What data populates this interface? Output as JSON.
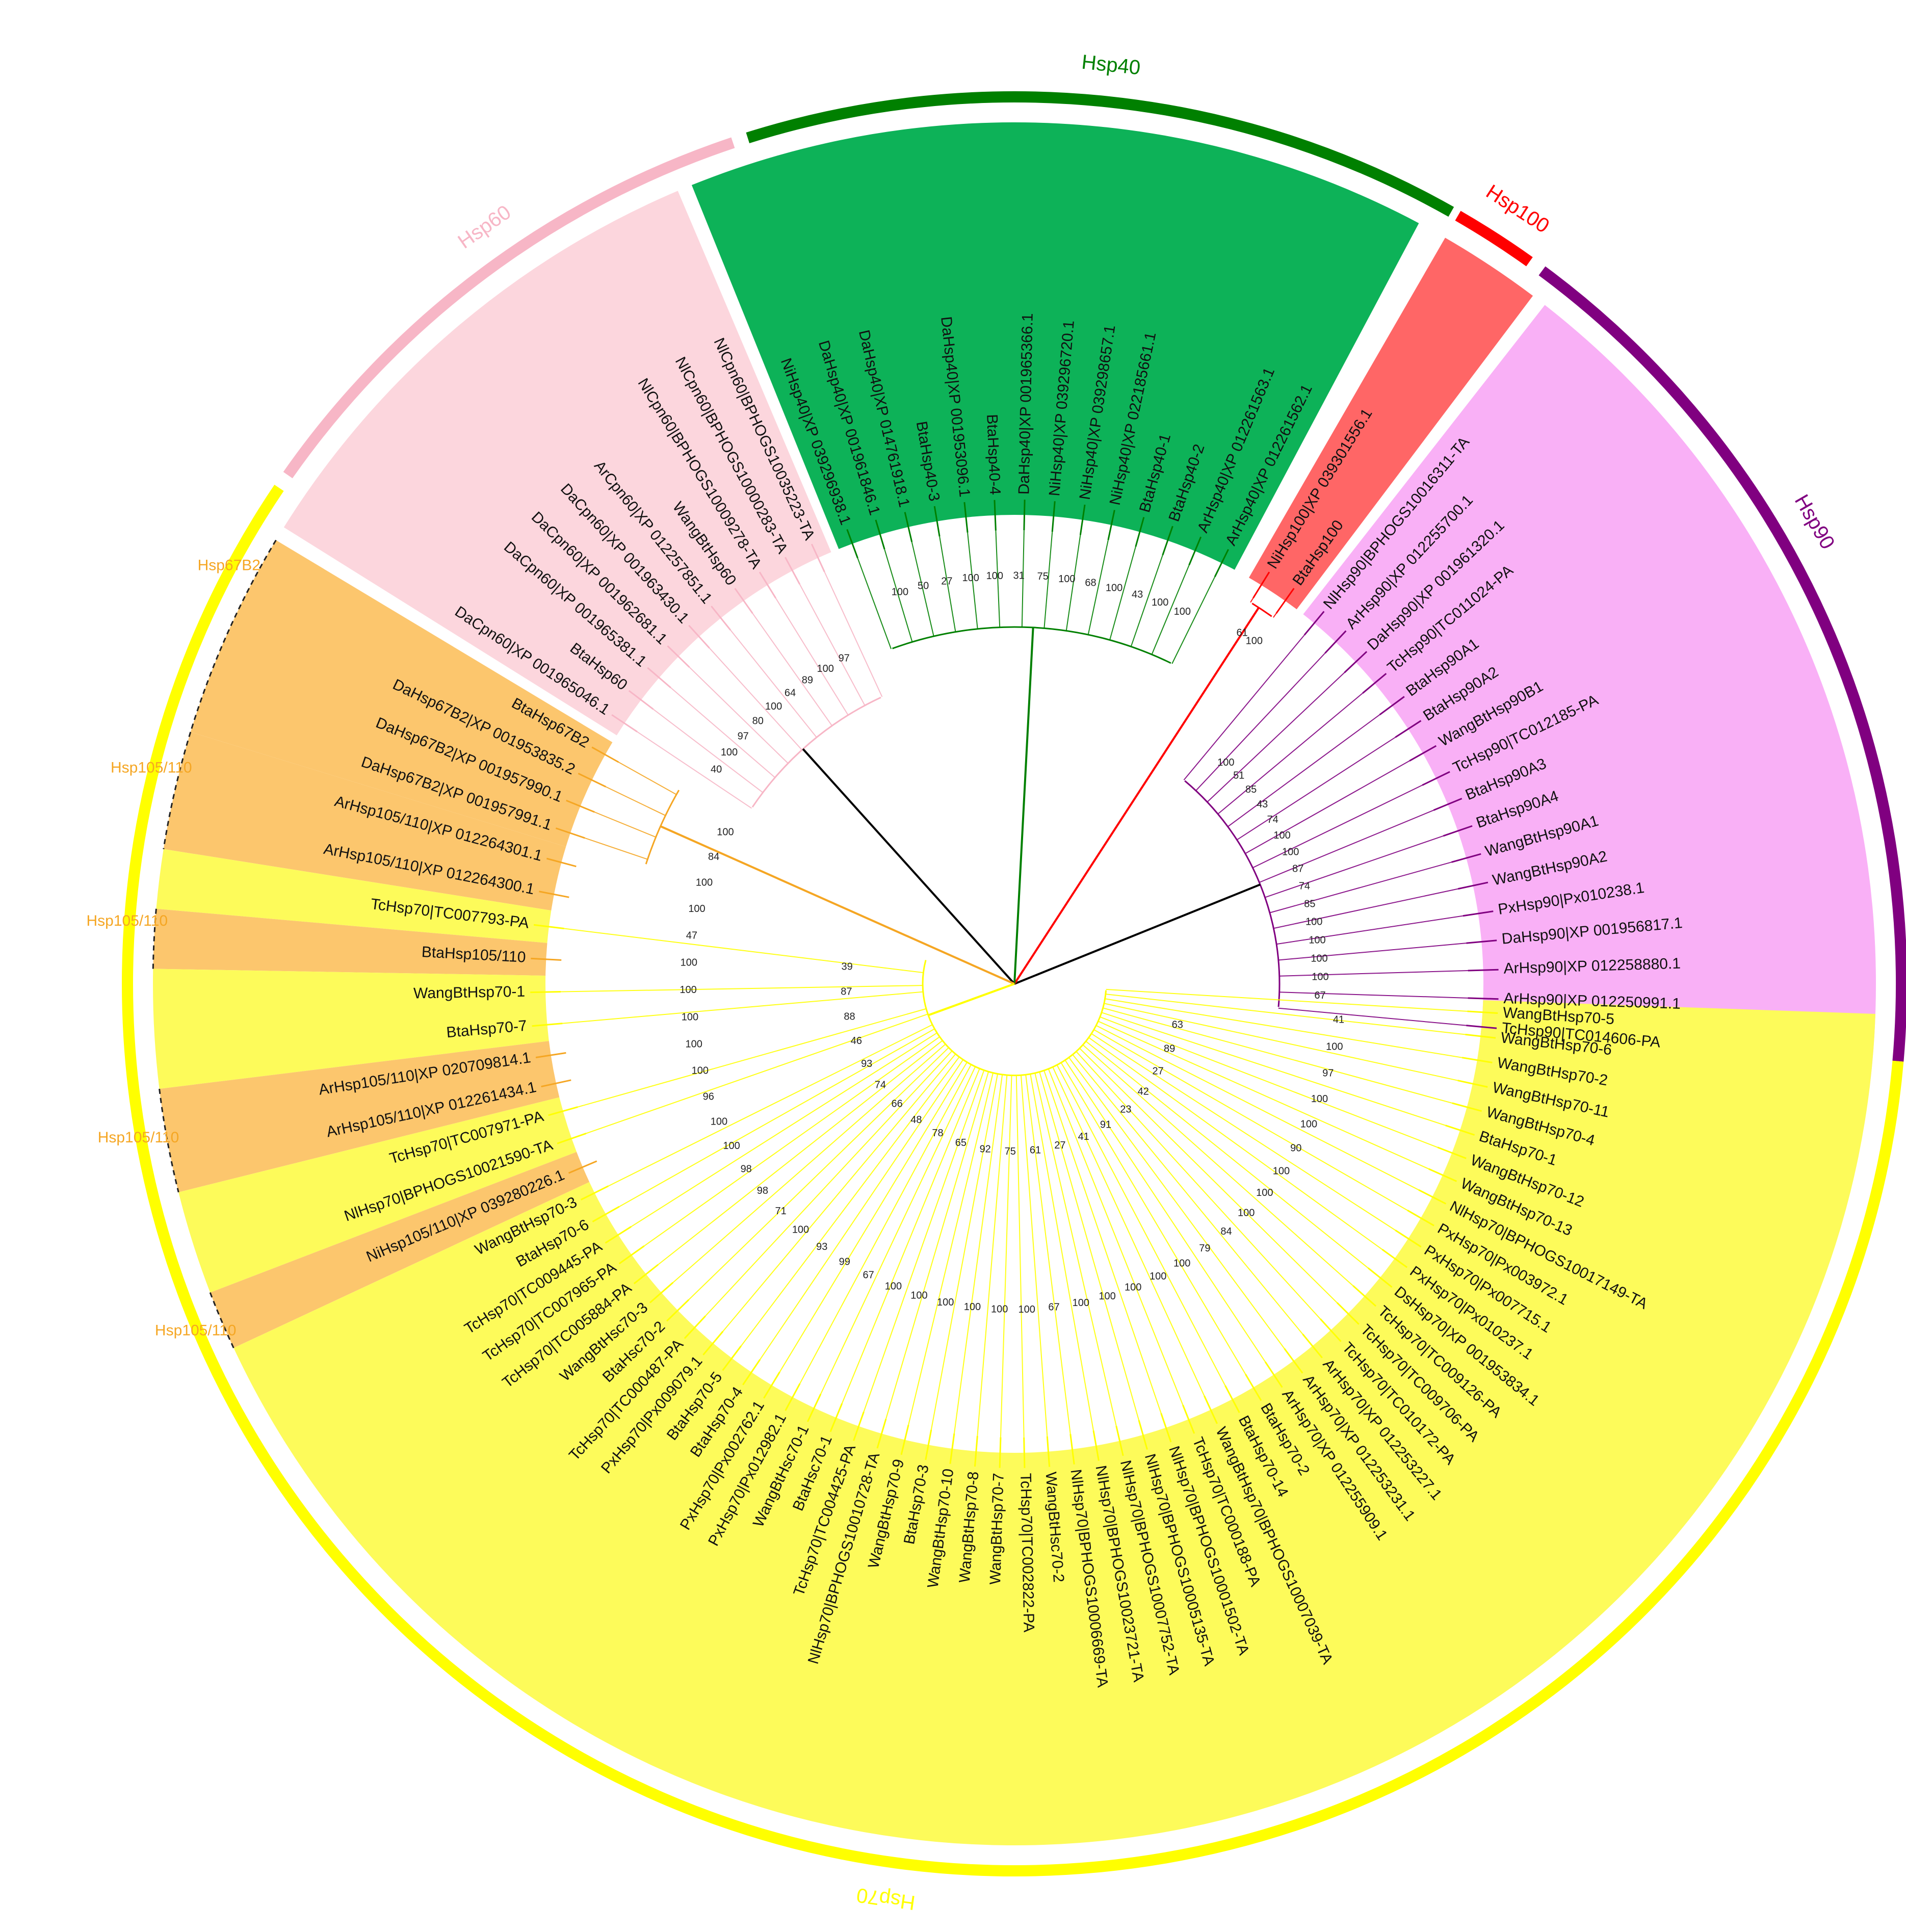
{
  "colors": {
    "Hsp40": "#008000",
    "Hsp40_fill": "#0db258",
    "Hsp100": "#ff0000",
    "Hsp100_fill": "#ff6666",
    "Hsp90": "#800080",
    "Hsp90_fill": "#f9b0f6",
    "Hsp60": "#f7b6c6",
    "Hsp60_fill": "#fcd6dd",
    "Hsp70": "#ffff00",
    "Hsp70_fill": "#fdfb5a",
    "Hsp105": "#f5a623",
    "Hsp105_fill": "#fcc66d",
    "root": "#000000"
  },
  "family_labels": [
    {
      "key": "Hsp40",
      "text": "Hsp40"
    },
    {
      "key": "Hsp100",
      "text": "Hsp100"
    },
    {
      "key": "Hsp90",
      "text": "Hsp90"
    },
    {
      "key": "Hsp60",
      "text": "Hsp60"
    },
    {
      "key": "Hsp70",
      "text": "Hsp70"
    }
  ],
  "subfamily_labels": [
    {
      "key": "Hsp67B2",
      "text": "Hsp67B2"
    },
    {
      "key": "Hsp105_a",
      "text": "Hsp105/110"
    },
    {
      "key": "Hsp105_b",
      "text": "Hsp105/110"
    },
    {
      "key": "Hsp105_c",
      "text": "Hsp105/110"
    },
    {
      "key": "Hsp105_d",
      "text": "Hsp105/110"
    }
  ],
  "leaves": {
    "Hsp90": [
      "TcHsp90|TC014606-PA",
      "ArHsp90|XP 012250991.1",
      "ArHsp90|XP 012258880.1",
      "DaHsp90|XP 001956817.1",
      "PxHsp90|Px010238.1",
      "WangBtHsp90A2",
      "WangBtHsp90A1",
      "BtaHsp90A4",
      "BtaHsp90A3",
      "TcHsp90|TC012185-PA",
      "WangBtHsp90B1",
      "BtaHsp90A2",
      "BtaHsp90A1",
      "TcHsp90|TC011024-PA",
      "DaHsp90|XP 001961320.1",
      "ArHsp90|XP 012255700.1",
      "NlHsp90|BPHOGS10016311-TA"
    ],
    "Hsp100": [
      "BtaHsp100",
      "NiHsp100|XP 039301556.1"
    ],
    "Hsp40": [
      "ArHsp40|XP 012261562.1",
      "ArHsp40|XP 012261563.1",
      "BtaHsp40-2",
      "BtaHsp40-1",
      "NiHsp40|XP 022185661.1",
      "NiHsp40|XP 039298657.1",
      "NiHsp40|XP 039296720.1",
      "DaHsp40|XP 001965366.1",
      "BtaHsp40-4",
      "DaHsp40|XP 001953096.1",
      "BtaHsp40-3",
      "DaHsp40|XP 014761918.1",
      "DaHsp40|XP 001961846.1",
      "NiHsp40|XP 039296938.1"
    ],
    "Hsp60": [
      "NlCpn60|BPHOGS10035223-TA",
      "NlCpn60|BPHOGS10000283-TA",
      "NlCpn60|BPHOGS10009278-TA",
      "WangBtHsp60",
      "ArCpn60|XP 012257851.1",
      "DaCpn60|XP 001963430.1",
      "DaCpn60|XP 001962681.1",
      "DaCpn60|XP 001965381.1",
      "BtaHsp60",
      "DaCpn60|XP 001965046.1"
    ],
    "Hsp67B2": [
      "BtaHsp67B2",
      "DaHsp67B2|XP 001953835.2",
      "DaHsp67B2|XP 001957990.1",
      "DaHsp67B2|XP 001957991.1"
    ],
    "Hsp105_a": [
      "ArHsp105/110|XP 012264301.1",
      "ArHsp105/110|XP 012264300.1"
    ],
    "Hsp70_a": [
      "TcHsp70|TC007793-PA"
    ],
    "Hsp105_b": [
      "BtaHsp105/110"
    ],
    "Hsp70_b": [
      "WangBtHsp70-1",
      "BtaHsp70-7"
    ],
    "Hsp105_c": [
      "ArHsp105/110|XP 020709814.1",
      "ArHsp105/110|XP 012261434.1"
    ],
    "Hsp70_c": [
      "TcHsp70|TC007971-PA",
      "NlHsp70|BPHOGS10021590-TA"
    ],
    "Hsp105_d": [
      "NiHsp105/110|XP 039280226.1"
    ],
    "Hsp70_d": [
      "WangBtHsp70-3",
      "BtaHsp70-6",
      "TcHsp70|TC009445-PA",
      "TcHsp70|TC007965-PA",
      "TcHsp70|TC005884-PA",
      "WangBtHsc70-3",
      "BtaHsc70-2",
      "TcHsp70|TC000487-PA",
      "PxHsp70|Px009079.1",
      "BtaHsp70-5",
      "BtaHsp70-4",
      "PxHsp70|Px002762.1",
      "PxHsp70|Px012982.1",
      "WangBtHsc70-1",
      "BtaHsc70-1",
      "TcHsp70|TC004425-PA",
      "NlHsp70|BPHOGS10010728-TA",
      "WangBtHsp70-9",
      "BtaHsp70-3",
      "WangBtHsp70-10",
      "WangBtHsp70-8",
      "WangBtHsp70-7",
      "TcHsp70|TC002822-PA",
      "WangBtHsc70-2",
      "NlHsp70|BPHOGS10006669-TA",
      "NlHsp70|BPHOGS10023721-TA",
      "NlHsp70|BPHOGS10007752-TA",
      "NlHsp70|BPHOGS10005135-TA",
      "NlHsp70|BPHOGS10001502-TA",
      "TcHsp70|TC000188-PA",
      "WangBtHsp70|BPHOGS10007039-TA",
      "BtaHsp70-14",
      "BtaHsp70-2",
      "ArHsp70|XP 012255909.1",
      "ArHsp70|XP 012253231.1",
      "ArHsp70|XP 012253227.1",
      "TcHsp70|TC010172-PA",
      "TcHsp70|TC009706-PA",
      "TcHsp70|TC009126-PA",
      "DsHsp70|XP 001953834.1",
      "PxHsp70|Px010237.1",
      "PxHsp70|Px007715.1",
      "PxHsp70|Px003972.1",
      "NlHsp70|BPHOGS10017149-TA",
      "WangBtHsp70-13",
      "WangBtHsp70-12",
      "BtaHsp70-1",
      "WangBtHsp70-4",
      "WangBtHsp70-11",
      "WangBtHsp70-2",
      "WangBtHsp70-6",
      "WangBtHsp70-5"
    ]
  },
  "bootstrap_values": {
    "root": [
      "39",
      "87",
      "88",
      "46",
      "93",
      "74",
      "66",
      "48",
      "78",
      "65",
      "92",
      "75",
      "61",
      "27",
      "41",
      "91",
      "23",
      "42",
      "27",
      "89",
      "63"
    ],
    "Hsp70": [
      "100",
      "84",
      "100",
      "100",
      "47",
      "100",
      "100",
      "100",
      "100",
      "100",
      "96",
      "100",
      "100",
      "98",
      "98",
      "71",
      "100",
      "93",
      "99",
      "67",
      "100",
      "100",
      "100",
      "100",
      "100",
      "100",
      "67",
      "100",
      "100",
      "100",
      "100",
      "100",
      "79",
      "84",
      "100",
      "100",
      "100",
      "90",
      "100",
      "100",
      "97",
      "100",
      "41"
    ],
    "Hsp60": [
      "97",
      "100",
      "89",
      "64",
      "100",
      "80",
      "97",
      "100",
      "40"
    ],
    "Hsp40": [
      "100",
      "100",
      "43",
      "100",
      "68",
      "100",
      "75",
      "31",
      "100",
      "100",
      "27",
      "50",
      "100"
    ],
    "Hsp100": [
      "100",
      "61"
    ],
    "Hsp90": [
      "67",
      "100",
      "100",
      "100",
      "100",
      "85",
      "74",
      "87",
      "100",
      "100",
      "74",
      "43",
      "85",
      "51",
      "100"
    ]
  }
}
